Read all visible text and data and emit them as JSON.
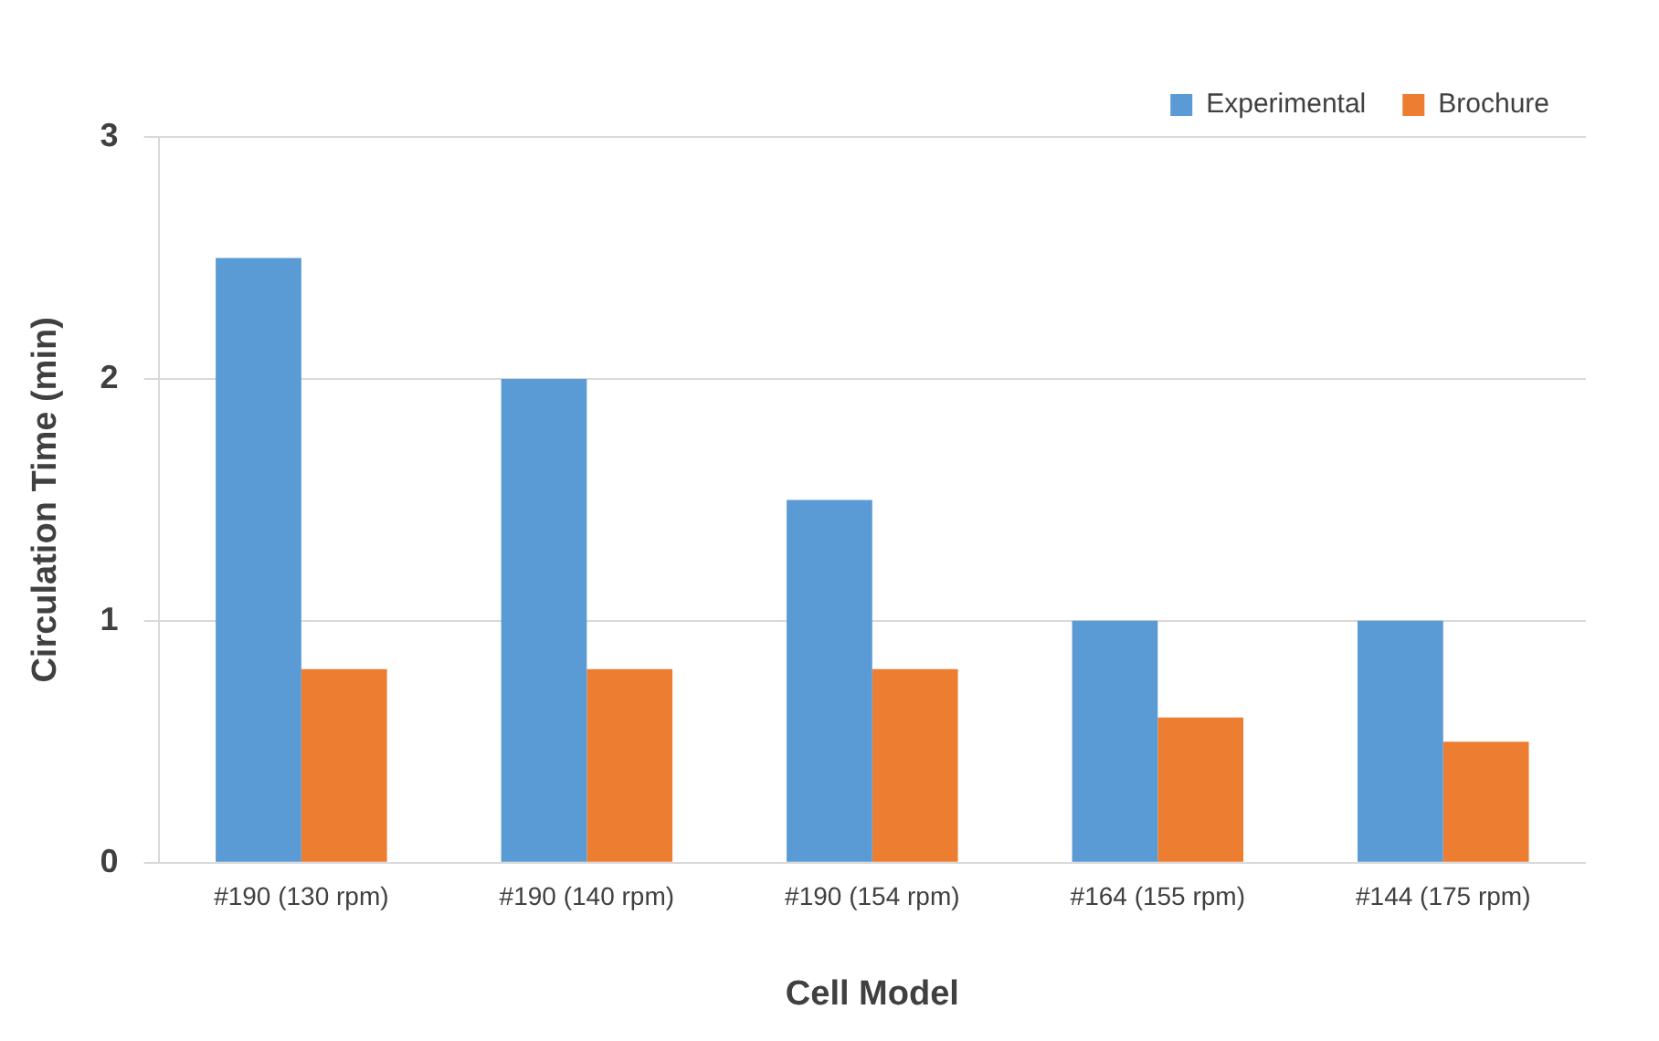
{
  "chart_data": {
    "type": "bar",
    "xlabel": "Cell Model",
    "ylabel": "Circulation Time (min)",
    "categories": [
      "#190 (130 rpm)",
      "#190 (140 rpm)",
      "#190 (154 rpm)",
      "#164 (155 rpm)",
      "#144 (175 rpm)"
    ],
    "series": [
      {
        "name": "Experimental",
        "color": "#5b9bd5",
        "values": [
          2.5,
          2.0,
          1.5,
          1.0,
          1.0
        ]
      },
      {
        "name": "Brochure",
        "color": "#ed7d31",
        "values": [
          0.8,
          0.8,
          0.8,
          0.6,
          0.5
        ]
      }
    ],
    "ylim": [
      0,
      3
    ],
    "yticks": [
      0,
      1,
      2,
      3
    ],
    "grid": "y",
    "legend": "top right"
  }
}
